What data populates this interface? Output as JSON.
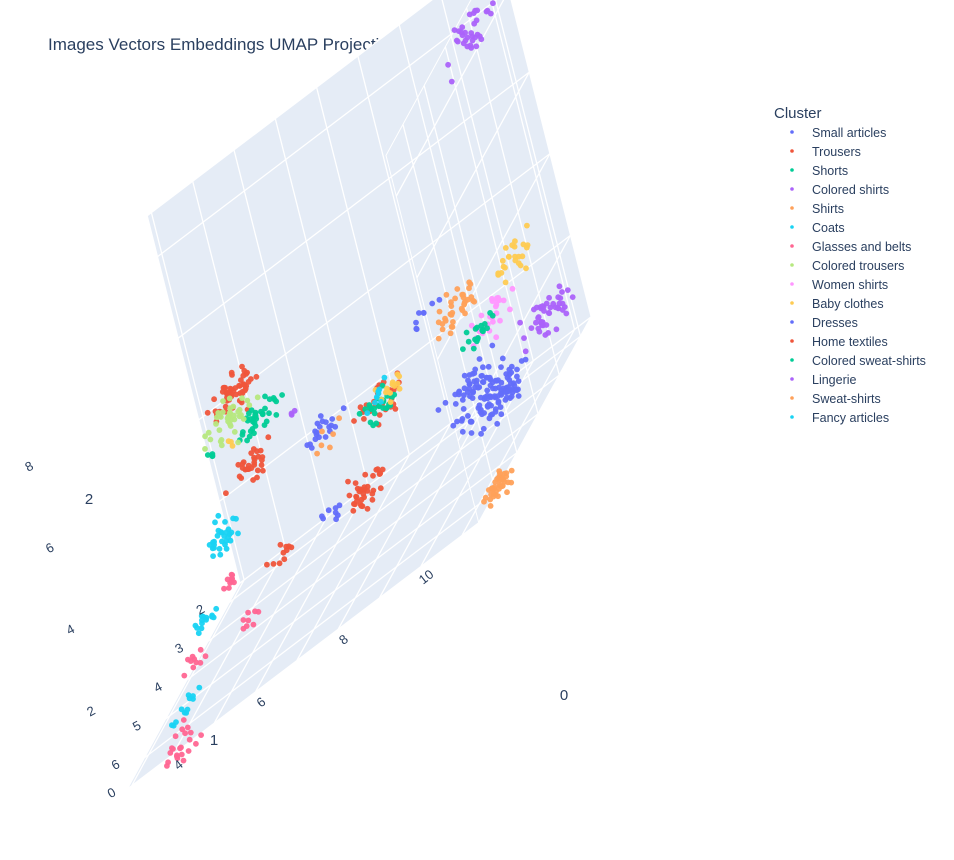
{
  "chart_data": {
    "type": "scatter",
    "subtype": "scatter3d",
    "title": "Images Vectors Embeddings UMAP Projections",
    "legend_title": "Cluster",
    "legend_position": "top-right",
    "axes": {
      "x": {
        "title": "0",
        "ticks": [
          "4",
          "6",
          "8",
          "10"
        ]
      },
      "y": {
        "title": "1",
        "ticks": [
          "2",
          "3",
          "4",
          "5",
          "6"
        ]
      },
      "z": {
        "title": "2",
        "ticks": [
          "0",
          "2",
          "4",
          "6",
          "8"
        ]
      }
    },
    "series": [
      {
        "name": "Small articles",
        "color": "#636efa",
        "clumps": [
          [
            1,
            7,
            1.5,
            0.55,
            45
          ],
          [
            2,
            4,
            4.5,
            0.35,
            20
          ],
          [
            4,
            9,
            2.5,
            0.5,
            35
          ],
          [
            6.8,
            6.8,
            4.8,
            0.25,
            8
          ]
        ]
      },
      {
        "name": "Trousers",
        "color": "#ef553b",
        "clumps": [
          [
            1,
            1.5,
            7.3,
            0.45,
            55
          ],
          [
            2.6,
            2.5,
            5.5,
            0.4,
            30
          ],
          [
            3,
            6,
            4.6,
            0.45,
            30
          ],
          [
            5.5,
            4.5,
            3.7,
            0.3,
            10
          ]
        ]
      },
      {
        "name": "Shorts",
        "color": "#00cc96",
        "clumps": [
          [
            1.2,
            2,
            6,
            0.4,
            35
          ],
          [
            3,
            6,
            4.5,
            0.35,
            25
          ],
          [
            7,
            4.5,
            10,
            0.15,
            4
          ]
        ]
      },
      {
        "name": "Colored shirts",
        "color": "#ab63fa",
        "clumps": [
          [
            2.1,
            3.5,
            6,
            0.12,
            3
          ]
        ]
      },
      {
        "name": "Shirts",
        "color": "#ffa15a",
        "clumps": [
          [
            2.6,
            4.5,
            4.5,
            0.25,
            6
          ]
        ]
      },
      {
        "name": "Coats",
        "color": "#19d3f3",
        "clumps": [
          [
            4.2,
            2.5,
            5,
            0.4,
            30
          ]
        ]
      },
      {
        "name": "Glasses and belts",
        "color": "#ff6692",
        "clumps": [
          [
            5,
            3,
            3.8,
            0.2,
            10
          ],
          [
            6,
            1.5,
            0.2,
            0.45,
            22
          ],
          [
            4.5,
            2.8,
            1.7,
            0.2,
            8
          ],
          [
            5.6,
            2,
            2.4,
            0.25,
            10
          ]
        ]
      },
      {
        "name": "Colored trousers",
        "color": "#b6e880",
        "clumps": [
          [
            1.3,
            1.5,
            6.8,
            0.5,
            40
          ]
        ]
      },
      {
        "name": "Women shirts",
        "color": "#ff97ff",
        "clumps": [
          [
            2.8,
            9,
            4.5,
            0.4,
            30
          ]
        ]
      },
      {
        "name": "Baby clothes",
        "color": "#fecb52",
        "clumps": [
          [
            0.5,
            8.5,
            4.5,
            0.4,
            25
          ],
          [
            7,
            5,
            10,
            0.12,
            3
          ],
          [
            3,
            6.5,
            5,
            0.3,
            14
          ]
        ]
      },
      {
        "name": "Dresses",
        "color": "#636efa",
        "clumps": [
          [
            4,
            9.5,
            2.5,
            0.5,
            55
          ],
          [
            3,
            7.5,
            6.5,
            0.3,
            8
          ]
        ]
      },
      {
        "name": "Home textiles",
        "color": "#ef553b",
        "clumps": [
          [
            4.5,
            6.2,
            3.1,
            0.4,
            35
          ]
        ]
      },
      {
        "name": "Colored sweat-shirts",
        "color": "#00cc96",
        "clumps": [
          [
            2.5,
            8.5,
            4.2,
            0.3,
            18
          ]
        ]
      },
      {
        "name": "Lingerie",
        "color": "#ab63fa",
        "clumps": [
          [
            0.3,
            8.5,
            13,
            0.5,
            35
          ],
          [
            2.4,
            10,
            3,
            0.5,
            45
          ]
        ]
      },
      {
        "name": "Sweat-shirts",
        "color": "#ffa15a",
        "clumps": [
          [
            6,
            10.2,
            0.8,
            0.3,
            40
          ],
          [
            1.6,
            7.5,
            5,
            0.4,
            35
          ]
        ]
      },
      {
        "name": "Fancy articles",
        "color": "#19d3f3",
        "clumps": [
          [
            5.2,
            2.2,
            3.3,
            0.25,
            14
          ],
          [
            5.8,
            1.7,
            1.2,
            0.3,
            12
          ],
          [
            3,
            6,
            5,
            0.25,
            8
          ]
        ]
      }
    ]
  }
}
